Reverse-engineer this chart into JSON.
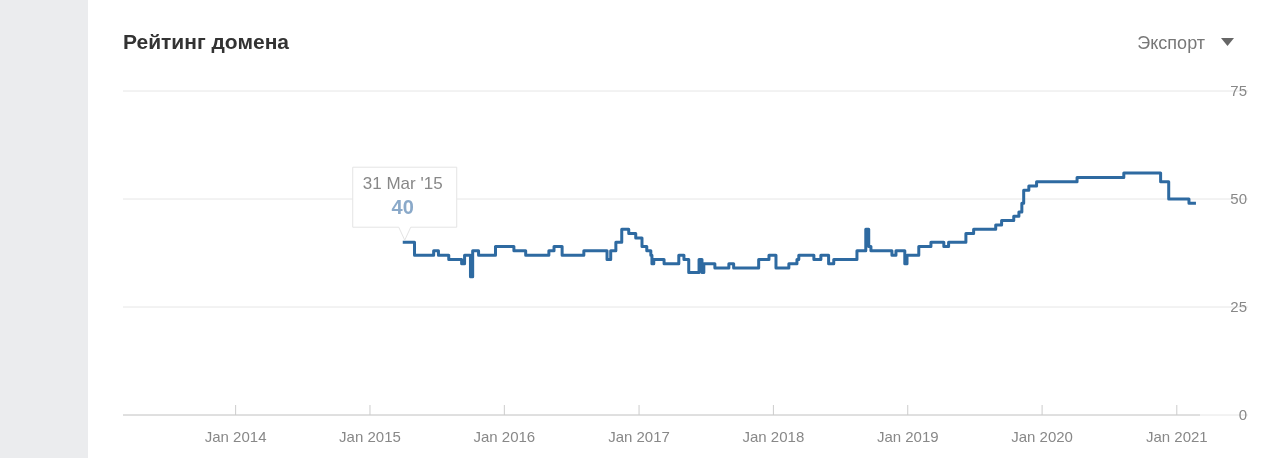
{
  "chart_data": {
    "type": "step",
    "title": "Рейтинг домена",
    "annotations": [
      "Экспорт",
      {
        "text": "31 Mar '15",
        "x": "2015-03-31",
        "y": 40
      },
      {
        "text": "40",
        "x": "2015-03-31",
        "y": 40
      }
    ],
    "xlim": [
      "2013-03-01",
      "2021-03-05"
    ],
    "ylim": [
      0,
      75
    ],
    "yticks": [
      0,
      25,
      50,
      75
    ],
    "grid": "y",
    "xticks": [
      {
        "value": "2014-01-01",
        "label": "Jan 2014"
      },
      {
        "value": "2015-01-01",
        "label": "Jan 2015"
      },
      {
        "value": "2016-01-01",
        "label": "Jan 2016"
      },
      {
        "value": "2017-01-01",
        "label": "Jan 2017"
      },
      {
        "value": "2018-01-01",
        "label": "Jan 2018"
      },
      {
        "value": "2019-01-01",
        "label": "Jan 2019"
      },
      {
        "value": "2020-01-01",
        "label": "Jan 2020"
      },
      {
        "value": "2021-01-01",
        "label": "Jan 2021"
      }
    ],
    "x": [
      "2015-03-31",
      "2015-05-02",
      "2015-06-23",
      "2015-07-06",
      "2015-08-03",
      "2015-09-07",
      "2015-09-15",
      "2015-10-01",
      "2015-10-07",
      "2015-10-23",
      "2015-12-08",
      "2016-01-08",
      "2016-01-27",
      "2016-02-28",
      "2016-05-01",
      "2016-05-15",
      "2016-06-06",
      "2016-08-04",
      "2016-09-22",
      "2016-10-06",
      "2016-10-16",
      "2016-10-30",
      "2016-11-15",
      "2016-12-04",
      "2016-12-23",
      "2017-01-09",
      "2017-01-22",
      "2017-02-02",
      "2017-02-05",
      "2017-02-10",
      "2017-03-10",
      "2017-04-19",
      "2017-05-03",
      "2017-05-16",
      "2017-06-13",
      "2017-06-21",
      "2017-06-26",
      "2017-07-26",
      "2017-09-02",
      "2017-09-15",
      "2017-11-22",
      "2017-12-20",
      "2018-01-08",
      "2018-02-12",
      "2018-03-06",
      "2018-03-11",
      "2018-04-21",
      "2018-05-10",
      "2018-05-31",
      "2018-06-14",
      "2018-08-16",
      "2018-09-09",
      "2018-09-17",
      "2018-09-23",
      "2018-11-19",
      "2018-11-30",
      "2018-12-24",
      "2018-12-30",
      "2019-01-31",
      "2019-03-05",
      "2019-04-09",
      "2019-04-22",
      "2019-06-08",
      "2019-06-29",
      "2019-08-28",
      "2019-09-13",
      "2019-10-16",
      "2019-10-30",
      "2019-11-07",
      "2019-11-12",
      "2019-11-26",
      "2019-12-17",
      "2020-04-05",
      "2020-08-10",
      "2020-11-18",
      "2020-12-10",
      "2021-02-03",
      "2021-02-22"
    ],
    "series": [
      {
        "color": "#2e6aa1",
        "values": [
          40,
          37,
          38,
          37,
          36,
          35,
          37,
          32,
          38,
          37,
          39,
          39,
          38,
          37,
          38,
          39,
          37,
          38,
          38,
          36,
          38,
          40,
          43,
          42,
          41,
          39,
          38,
          37,
          35,
          36,
          35,
          37,
          36,
          33,
          36,
          33,
          35,
          34,
          35,
          34,
          36,
          37,
          34,
          35,
          36,
          37,
          36,
          37,
          35,
          36,
          38,
          43,
          39,
          38,
          37,
          38,
          35,
          37,
          39,
          40,
          39,
          40,
          42,
          43,
          44,
          45,
          46,
          47,
          49,
          52,
          53,
          54,
          55,
          56,
          54,
          50,
          49,
          49
        ]
      }
    ],
    "marker": "none",
    "line_style": "solid"
  }
}
